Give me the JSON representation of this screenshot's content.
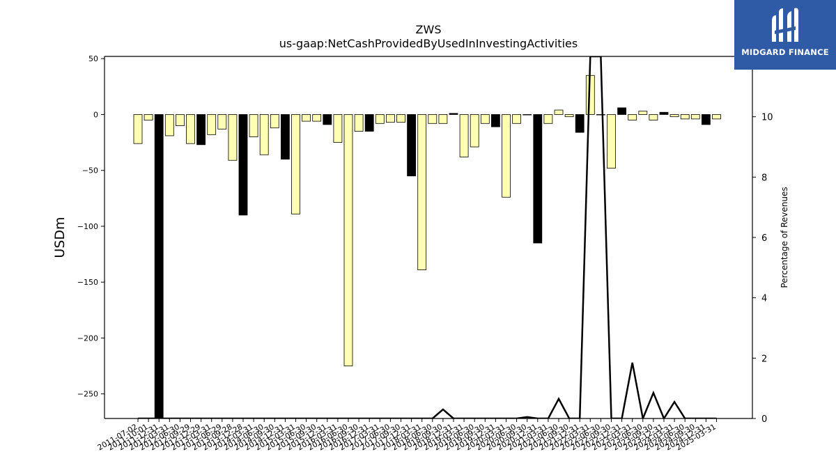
{
  "logo": {
    "text": "MIDGARD FINANCE"
  },
  "chart_data": {
    "type": "bar",
    "title": "ZWS",
    "subtitle": "us-gaap:NetCashProvidedByUsedInInvestingActivities",
    "ylabel": "USDm",
    "y2label": "Percentage of Revenues",
    "ylim": [
      -272,
      52
    ],
    "y2lim": [
      0,
      12
    ],
    "yticks": [
      50,
      0,
      -50,
      -100,
      -150,
      -200,
      -250
    ],
    "y2ticks": [
      0,
      2,
      4,
      6,
      8,
      10
    ],
    "colors": {
      "quarter_bar": "#ffffb3",
      "annual_bar": "#000000",
      "bar_edge": "#000000",
      "line": "#000000"
    },
    "tick_labels": [
      "2011-07-02",
      "2011-10-01",
      "2011-12-31",
      "2012-03-31",
      "2012-06-30",
      "2012-09-29",
      "2012-12-29",
      "2013-03-31",
      "2013-06-29",
      "2013-09-28",
      "2013-12-28",
      "2014-03-31",
      "2014-06-30",
      "2014-09-30",
      "2014-12-31",
      "2015-03-31",
      "2015-06-30",
      "2015-09-30",
      "2015-12-31",
      "2016-03-31",
      "2016-06-30",
      "2016-09-30",
      "2016-12-31",
      "2017-03-31",
      "2017-06-30",
      "2017-09-30",
      "2017-12-31",
      "2018-03-31",
      "2018-06-30",
      "2018-09-30",
      "2018-12-31",
      "2019-03-31",
      "2019-06-30",
      "2019-09-30",
      "2019-12-31",
      "2020-03-31",
      "2020-06-30",
      "2020-09-30",
      "2020-12-31",
      "2021-03-31",
      "2021-06-30",
      "2021-09-30",
      "2021-12-31",
      "2022-03-31",
      "2022-06-30",
      "2022-09-30",
      "2022-12-31",
      "2023-03-31",
      "2023-06-30",
      "2023-09-30",
      "2023-12-31",
      "2024-03-31",
      "2024-06-30",
      "2024-09-30",
      "2024-12-31",
      "2025-03-31"
    ],
    "bar_values": [
      -26,
      -5,
      -272,
      -19,
      -10,
      -26,
      -27,
      -18,
      -13,
      -41,
      -90,
      -20,
      -36,
      -12,
      -40,
      -89,
      -6,
      -6,
      -9,
      -25,
      -225,
      -15,
      -15,
      -8,
      -7,
      -7,
      -55,
      -139,
      -8,
      -8,
      1,
      -38,
      -29,
      -8,
      -11,
      -74,
      -8,
      0,
      -115,
      -8,
      4,
      -2,
      -16,
      35,
      0,
      -48,
      6,
      -5,
      3,
      -5,
      2,
      -2,
      -4,
      -4,
      -9,
      -4
    ],
    "annual_flags": [
      0,
      0,
      1,
      0,
      0,
      0,
      1,
      0,
      0,
      0,
      1,
      0,
      0,
      0,
      1,
      0,
      0,
      0,
      1,
      0,
      0,
      0,
      1,
      0,
      0,
      0,
      1,
      0,
      0,
      0,
      1,
      0,
      0,
      0,
      1,
      0,
      0,
      0,
      1,
      0,
      0,
      0,
      1,
      0,
      0,
      0,
      1,
      0,
      0,
      0,
      1,
      0,
      0,
      0,
      1,
      0
    ],
    "line_values": [
      0,
      0,
      0,
      0,
      0,
      0,
      0,
      0,
      0,
      0,
      0,
      0,
      0,
      0,
      0,
      0,
      0,
      0,
      0,
      0,
      0,
      0,
      0,
      0,
      0,
      0,
      0,
      0,
      0,
      0.3,
      0,
      0,
      0,
      0,
      0,
      0,
      0,
      0.05,
      0,
      0,
      0.65,
      0,
      0,
      12,
      12,
      0,
      0,
      1.85,
      0,
      0.85,
      0,
      0.55,
      0,
      0,
      0,
      0
    ]
  }
}
